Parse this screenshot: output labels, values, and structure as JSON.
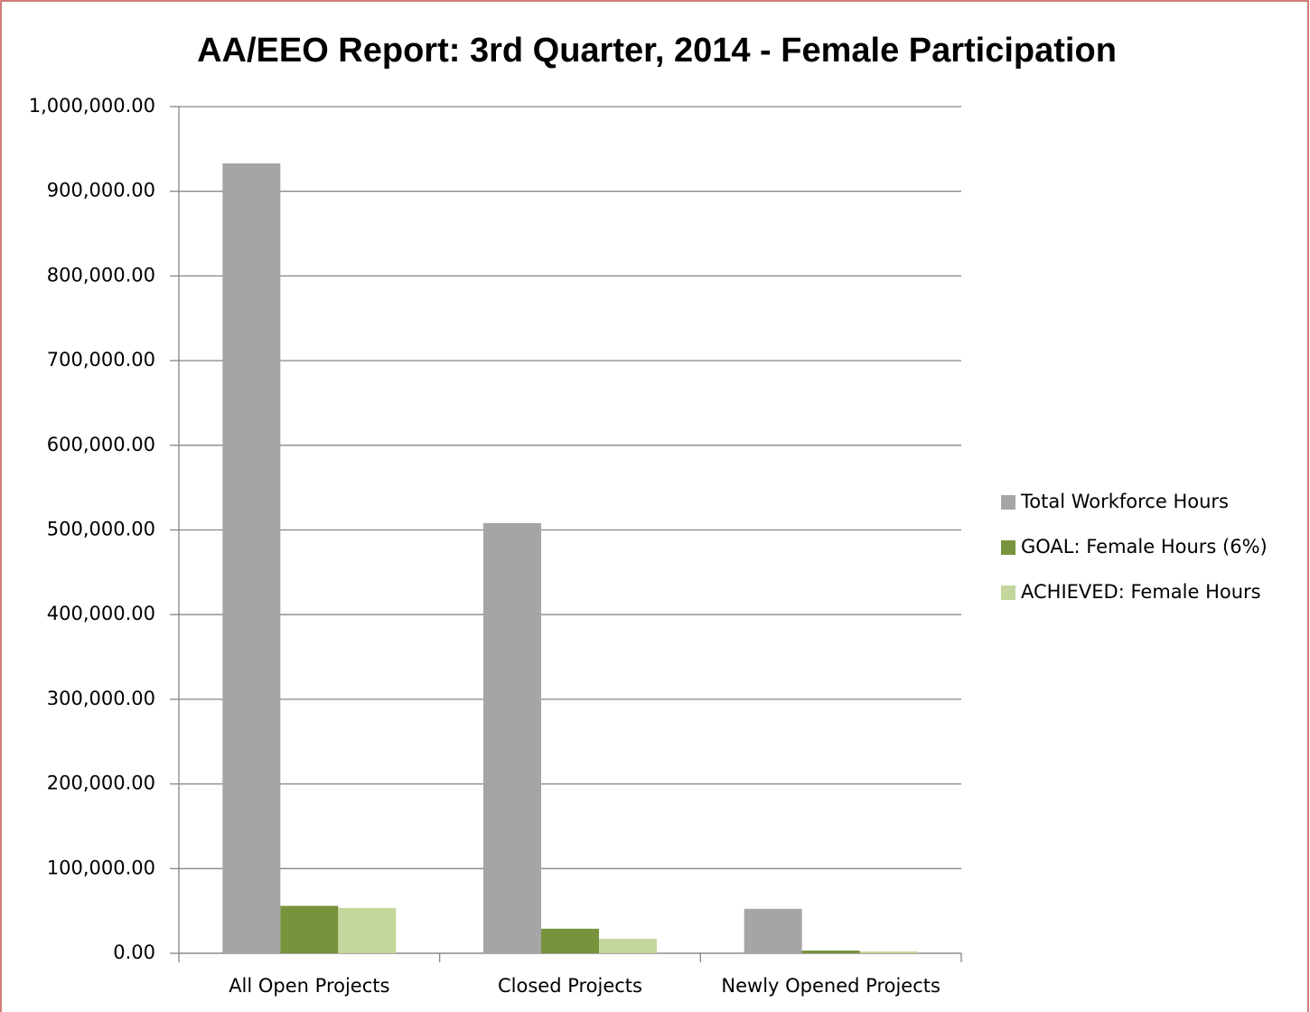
{
  "chart_data": {
    "type": "bar",
    "title": "AA/EEO Report: 3rd Quarter, 2014 - Female Participation",
    "categories": [
      "All Open Projects",
      "Closed Projects",
      "Newly Opened Projects"
    ],
    "series": [
      {
        "name": "Total Workforce Hours",
        "color": "#a5a5a5",
        "values": [
          933000,
          508000,
          52500
        ]
      },
      {
        "name": "GOAL: Female Hours (6%)",
        "color": "#77933c",
        "values": [
          56000,
          29000,
          3200
        ]
      },
      {
        "name": "ACHIEVED: Female Hours",
        "color": "#c3d69b",
        "values": [
          53500,
          17000,
          2100
        ]
      }
    ],
    "ylim": [
      0,
      1000000
    ],
    "yticks": [
      {
        "value": 0,
        "label": "0.00"
      },
      {
        "value": 100000,
        "label": "100,000.00"
      },
      {
        "value": 200000,
        "label": "200,000.00"
      },
      {
        "value": 300000,
        "label": "300,000.00"
      },
      {
        "value": 400000,
        "label": "400,000.00"
      },
      {
        "value": 500000,
        "label": "500,000.00"
      },
      {
        "value": 600000,
        "label": "600,000.00"
      },
      {
        "value": 700000,
        "label": "700,000.00"
      },
      {
        "value": 800000,
        "label": "800,000.00"
      },
      {
        "value": 900000,
        "label": "900,000.00"
      },
      {
        "value": 1000000,
        "label": "1,000,000.00"
      }
    ],
    "grid": true,
    "legend": "right"
  }
}
